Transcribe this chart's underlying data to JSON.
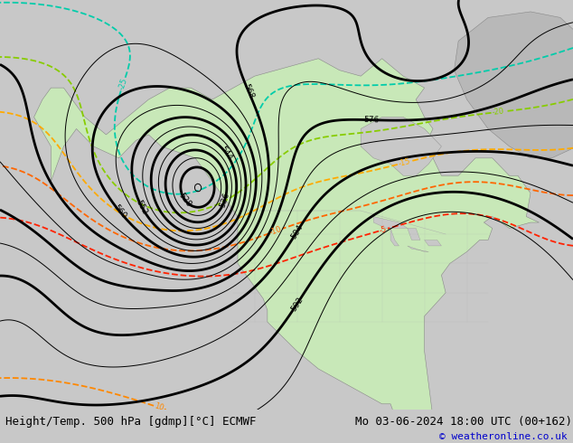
{
  "title_left": "Height/Temp. 500 hPa [gdmp][°C] ECMWF",
  "title_right": "Mo 03-06-2024 18:00 UTC (00+162)",
  "copyright": "© weatheronline.co.uk",
  "copyright_color": "#0000cc",
  "bg_color": "#c8c8c8",
  "land_color": "#c8e8b8",
  "ocean_color": "#c8c8c8",
  "fig_width": 6.34,
  "fig_height": 4.9,
  "dpi": 100,
  "title_fontsize": 9,
  "label_fontsize": 7,
  "copyright_fontsize": 8
}
